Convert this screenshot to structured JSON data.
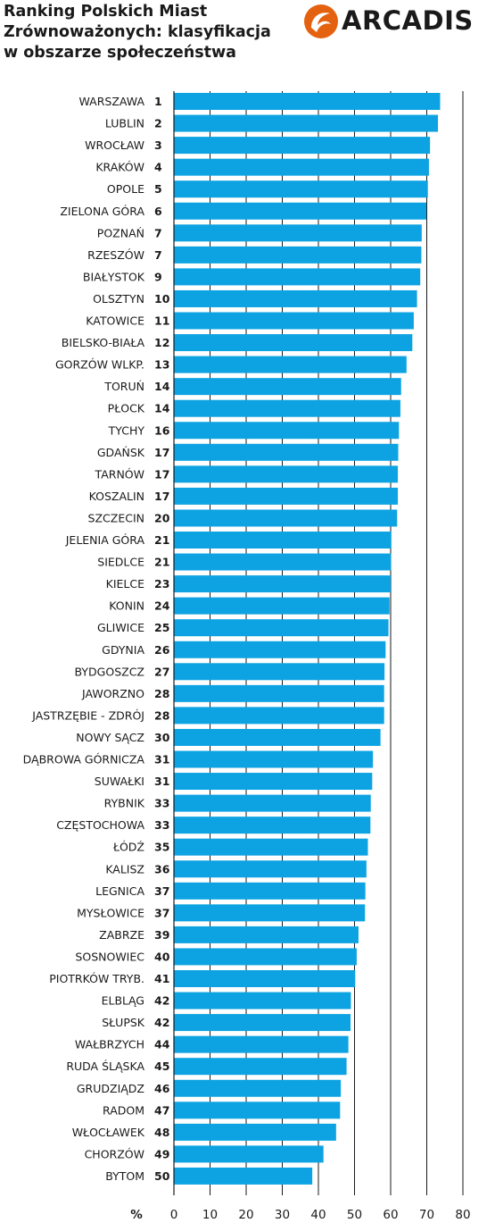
{
  "header": {
    "title_lines": [
      "Ranking Polskich Miast",
      "Zrównoważonych: klasyfikacja",
      "w obszarze społeczeństwa"
    ]
  },
  "logo": {
    "text": "ARCADIS",
    "accent_color": "#e4610f"
  },
  "chart_data": {
    "type": "bar",
    "orientation": "horizontal",
    "title": "Ranking Polskich Miast Zrównoważonych: klasyfikacja w obszarze społeczeństwa",
    "xlabel": "%",
    "xlim": [
      0,
      80
    ],
    "xticks": [
      0,
      10,
      20,
      30,
      40,
      50,
      60,
      70,
      80
    ],
    "grid": true,
    "bar_color": "#0da3e2",
    "categories": [
      "WARSZAWA",
      "LUBLIN",
      "WROCŁAW",
      "KRAKÓW",
      "OPOLE",
      "ZIELONA GÓRA",
      "POZNAŃ",
      "RZESZÓW",
      "BIAŁYSTOK",
      "OLSZTYN",
      "KATOWICE",
      "BIELSKO-BIAŁA",
      "GORZÓW WLKP.",
      "TORUŃ",
      "PŁOCK",
      "TYCHY",
      "GDAŃSK",
      "TARNÓW",
      "KOSZALIN",
      "SZCZECIN",
      "JELENIA GÓRA",
      "SIEDLCE",
      "KIELCE",
      "KONIN",
      "GLIWICE",
      "GDYNIA",
      "BYDGOSZCZ",
      "JAWORZNO",
      "JASTRZĘBIE - ZDRÓJ",
      "NOWY SĄCZ",
      "DĄBROWA GÓRNICZA",
      "SUWAŁKI",
      "RYBNIK",
      "CZĘSTOCHOWA",
      "ŁÓDŹ",
      "KALISZ",
      "LEGNICA",
      "MYSŁOWICE",
      "ZABRZE",
      "SOSNOWIEC",
      "PIOTRKÓW TRYB.",
      "ELBLĄG",
      "SŁUPSK",
      "WAŁBRZYCH",
      "RUDA ŚLĄSKA",
      "GRUDZIĄDZ",
      "RADOM",
      "WŁOCŁAWEK",
      "CHORZÓW",
      "BYTOM"
    ],
    "ranks": [
      "1",
      "2",
      "3",
      "4",
      "5",
      "6",
      "7",
      "7",
      "9",
      "10",
      "11",
      "12",
      "13",
      "14",
      "14",
      "16",
      "17",
      "17",
      "17",
      "20",
      "21",
      "21",
      "23",
      "24",
      "25",
      "26",
      "27",
      "28",
      "28",
      "30",
      "31",
      "31",
      "33",
      "33",
      "35",
      "36",
      "37",
      "37",
      "39",
      "40",
      "41",
      "42",
      "42",
      "44",
      "45",
      "46",
      "47",
      "48",
      "49",
      "50"
    ],
    "values": [
      73.7,
      73.1,
      70.9,
      70.6,
      70.3,
      69.9,
      68.6,
      68.5,
      68.2,
      67.3,
      66.4,
      66.0,
      64.4,
      62.9,
      62.7,
      62.3,
      62.1,
      62.0,
      62.0,
      61.8,
      60.2,
      60.1,
      60.0,
      59.7,
      59.4,
      58.6,
      58.3,
      58.2,
      58.2,
      57.2,
      55.1,
      54.9,
      54.5,
      54.4,
      53.7,
      53.3,
      53.0,
      52.9,
      51.1,
      50.6,
      50.2,
      49.0,
      48.9,
      48.3,
      47.8,
      46.2,
      46.0,
      44.9,
      41.4,
      38.3
    ]
  }
}
